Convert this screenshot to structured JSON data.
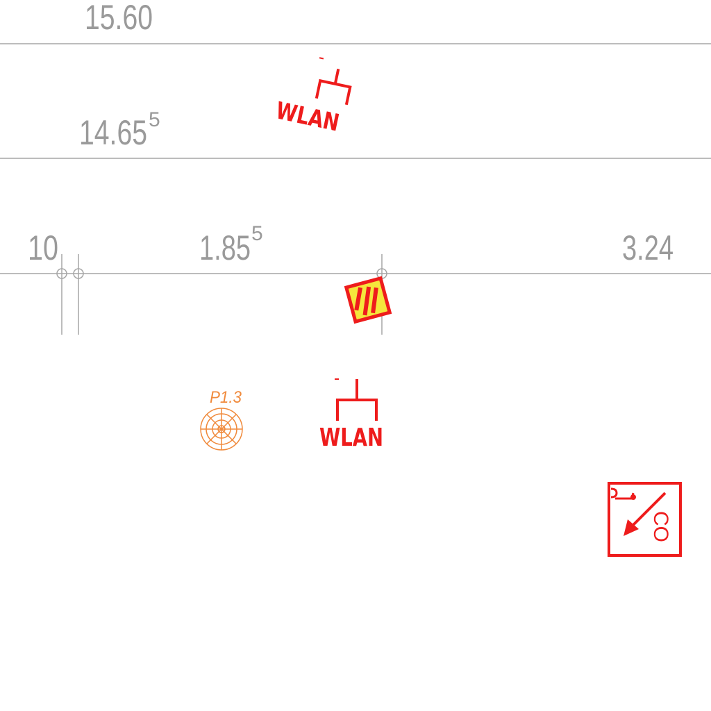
{
  "colors": {
    "dimension": "#9a9a9a",
    "line": "#a6a6a6",
    "symbol": "#ee1c1c",
    "pump": "#f08a3c",
    "hatch_fill": "#f5e63c"
  },
  "dimensions": {
    "elev_top": "15.60",
    "elev_mid_base": "14.65",
    "elev_mid_sup": "5",
    "dim_left": "10",
    "dim_center_base": "1.85",
    "dim_center_sup": "5",
    "dim_right": "3.24"
  },
  "symbols": {
    "wlan_upper": {
      "label": "WLAN",
      "icon": "wlan-antenna-icon"
    },
    "wlan_lower": {
      "label": "WLAN",
      "icon": "wlan-antenna-icon"
    },
    "pump": {
      "label": "P1.3",
      "icon": "circular-pump-icon"
    },
    "hazard": {
      "icon": "hatched-hazard-icon"
    },
    "co_detector": {
      "label": "CO",
      "icon": "co-detector-icon"
    }
  }
}
